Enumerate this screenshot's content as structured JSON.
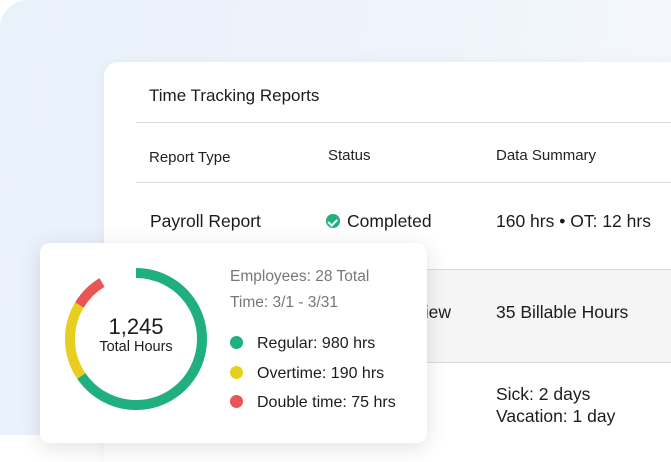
{
  "table": {
    "title": "Time Tracking Reports",
    "headers": [
      "Report Type",
      "Status",
      "Data Summary"
    ],
    "rows": [
      {
        "type": "Payroll Report",
        "status": "Completed",
        "summary": "160 hrs • OT: 12 hrs"
      },
      {
        "status_partial": "view",
        "summary": "35 Billable Hours"
      },
      {
        "summary_line1": "Sick: 2 days",
        "summary_line2": "Vacation: 1 day"
      }
    ]
  },
  "colors": {
    "regular": "#1fb07e",
    "overtime": "#e8cf1f",
    "double_time": "#ea5455",
    "check": "#21b07a"
  },
  "chart_data": {
    "type": "pie",
    "variant": "donut",
    "total_value": "1,245",
    "total_label": "Total Hours",
    "employees": "Employees: 28 Total",
    "time_range": "Time: 3/1 - 3/31",
    "series": [
      {
        "name": "Regular",
        "value": 980,
        "label": "Regular: 980 hrs"
      },
      {
        "name": "Overtime",
        "value": 190,
        "label": "Overtime: 190 hrs"
      },
      {
        "name": "Double time",
        "value": 75,
        "label": "Double time: 75 hrs"
      }
    ]
  }
}
